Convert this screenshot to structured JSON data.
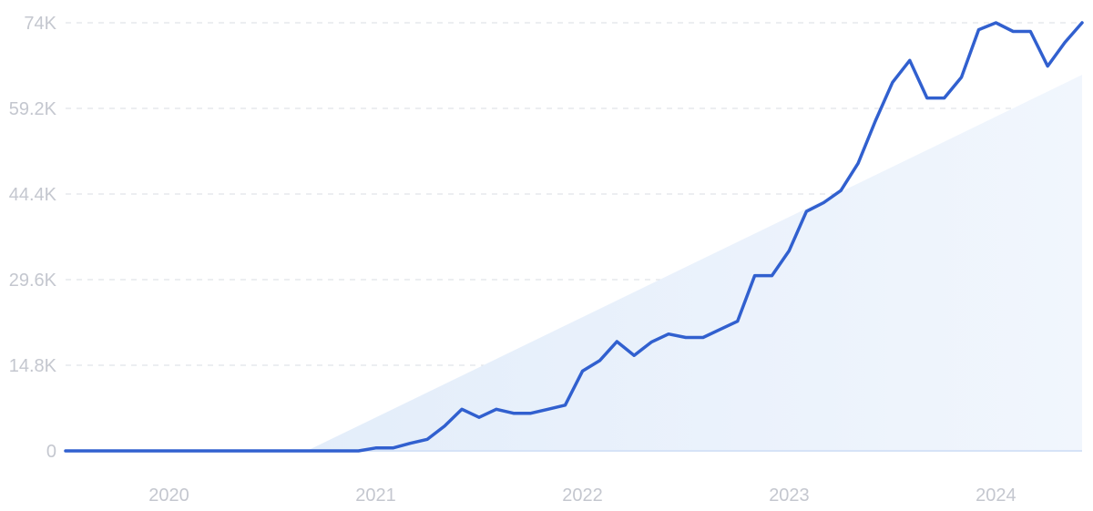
{
  "chart_data": {
    "type": "line",
    "title": "",
    "xlabel": "",
    "ylabel": "",
    "ylim": [
      0,
      74000
    ],
    "xlim": [
      "2019-07",
      "2024-06"
    ],
    "y_ticks": [
      0,
      14800,
      29600,
      44400,
      59200,
      74000
    ],
    "y_tick_labels": [
      "0",
      "14.8K",
      "29.6K",
      "44.4K",
      "59.2K",
      "74K"
    ],
    "x_ticks": [
      "2020-01",
      "2021-01",
      "2022-01",
      "2023-01",
      "2024-01"
    ],
    "x_tick_labels": [
      "2020",
      "2021",
      "2022",
      "2023",
      "2024"
    ],
    "grid": true,
    "colors": {
      "line": "#3160cf",
      "trend_fill": "#e4eefb",
      "grid": "#d9dce3",
      "tick_text": "#c4c7cf",
      "baseline": "#d6e3f7"
    },
    "trend": {
      "start": {
        "x": "2020-09",
        "y": 0
      },
      "end": {
        "x": "2024-06",
        "y": 65000
      }
    },
    "series": [
      {
        "x": [
          "2019-07",
          "2019-08",
          "2019-09",
          "2019-10",
          "2019-11",
          "2019-12",
          "2020-01",
          "2020-02",
          "2020-03",
          "2020-04",
          "2020-05",
          "2020-06",
          "2020-07",
          "2020-08",
          "2020-09",
          "2020-10",
          "2020-11",
          "2020-12",
          "2021-01",
          "2021-02",
          "2021-03",
          "2021-04",
          "2021-05",
          "2021-06",
          "2021-07",
          "2021-08",
          "2021-09",
          "2021-10",
          "2021-11",
          "2021-12",
          "2022-01",
          "2022-02",
          "2022-03",
          "2022-04",
          "2022-05",
          "2022-06",
          "2022-07",
          "2022-08",
          "2022-09",
          "2022-10",
          "2022-11",
          "2022-12",
          "2023-01",
          "2023-02",
          "2023-03",
          "2023-04",
          "2023-05",
          "2023-06",
          "2023-07",
          "2023-08",
          "2023-09",
          "2023-10",
          "2023-11",
          "2023-12",
          "2024-01",
          "2024-02",
          "2024-03",
          "2024-04",
          "2024-05",
          "2024-06"
        ],
        "y": [
          0,
          0,
          0,
          0,
          0,
          0,
          0,
          0,
          0,
          0,
          0,
          0,
          0,
          0,
          0,
          0,
          0,
          0,
          500,
          500,
          1300,
          2000,
          4300,
          7200,
          5800,
          7200,
          6500,
          6500,
          7200,
          7900,
          13800,
          15600,
          18900,
          16500,
          18800,
          20200,
          19600,
          19600,
          21000,
          22400,
          30300,
          30300,
          34600,
          41400,
          42900,
          45000,
          49700,
          57000,
          63700,
          67500,
          61000,
          61000,
          64600,
          72800,
          74000,
          72500,
          72500,
          66500,
          70600,
          74000
        ]
      }
    ]
  }
}
